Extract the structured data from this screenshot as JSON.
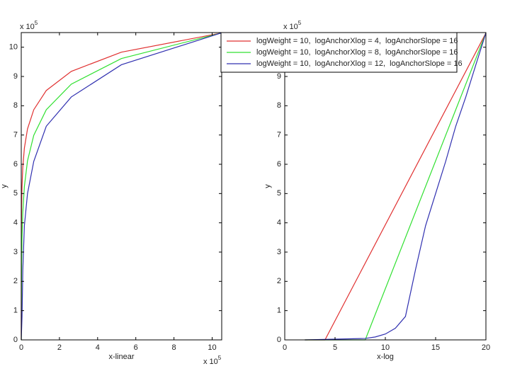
{
  "chart_data": [
    {
      "type": "line",
      "x_label": "x-linear",
      "y_label": "y",
      "x_scale_label": {
        "base": "x 10",
        "exponent": "5"
      },
      "y_scale_label": {
        "base": "x 10",
        "exponent": "5"
      },
      "xlim": [
        0,
        10.5
      ],
      "ylim": [
        0,
        10.5
      ],
      "xticks": [
        0,
        2,
        4,
        6,
        8,
        10
      ],
      "yticks": [
        0,
        1,
        2,
        3,
        4,
        5,
        6,
        7,
        8,
        9,
        10
      ],
      "series": [
        {
          "color": "#e03030",
          "x": [
            4e-05,
            0.00016,
            0.00032,
            0.00064,
            0.00128,
            0.00256,
            0.00512,
            0.01024,
            0.02048,
            0.04096,
            0.08192,
            0.16384,
            0.32768,
            0.65536,
            1.31072,
            2.62144,
            5.24288,
            10.48576
          ],
          "values": [
            0,
            0,
            0.655,
            1.311,
            1.966,
            2.621,
            3.277,
            3.932,
            4.588,
            5.243,
            5.898,
            6.554,
            7.209,
            7.864,
            8.52,
            9.175,
            9.83,
            10.486
          ]
        },
        {
          "color": "#30e030",
          "x": [
            4e-05,
            0.00256,
            0.00512,
            0.01024,
            0.02048,
            0.04096,
            0.08192,
            0.16384,
            0.32768,
            0.65536,
            1.31072,
            2.62144,
            5.24288,
            10.48576
          ],
          "values": [
            0,
            0,
            0.874,
            1.748,
            2.621,
            3.495,
            4.369,
            5.243,
            6.117,
            6.99,
            7.864,
            8.738,
            9.612,
            10.486
          ]
        },
        {
          "color": "#3030b0",
          "x": [
            4e-05,
            0.00256,
            0.00512,
            0.01024,
            0.02048,
            0.04096,
            0.08192,
            0.16384,
            0.32768,
            0.65536,
            1.31072,
            2.62144,
            5.24288,
            10.48576
          ],
          "values": [
            0,
            0.05,
            0.1,
            0.2,
            0.4,
            0.8,
            2.4,
            3.9,
            5.0,
            6.1,
            7.3,
            8.3,
            9.4,
            10.49
          ]
        }
      ]
    },
    {
      "type": "line",
      "x_label": "x-log",
      "y_label": "y",
      "y_scale_label": {
        "base": "x 10",
        "exponent": "5"
      },
      "xlim": [
        0,
        20
      ],
      "ylim": [
        0,
        10.5
      ],
      "xticks": [
        0,
        5,
        10,
        15,
        20
      ],
      "yticks": [
        0,
        1,
        2,
        3,
        4,
        5,
        6,
        7,
        8,
        9,
        10
      ],
      "legend": "upper-left",
      "series": [
        {
          "name": "logWeight = 10,  logAnchorXlog = 4,  logAnchorSlope = 16",
          "color": "#e03030",
          "x": [
            2,
            4,
            20
          ],
          "values": [
            0,
            0,
            10.486
          ]
        },
        {
          "name": "logWeight = 10,  logAnchorXlog = 8,  logAnchorSlope = 16",
          "color": "#30e030",
          "x": [
            2,
            8,
            20
          ],
          "values": [
            0,
            0,
            10.486
          ]
        },
        {
          "name": "logWeight = 10,  logAnchorXlog = 12,  logAnchorSlope = 16",
          "color": "#3030b0",
          "x": [
            2,
            8,
            9,
            10,
            11,
            12,
            13,
            14,
            15,
            16,
            17,
            18,
            19,
            20
          ],
          "values": [
            0,
            0.05,
            0.1,
            0.2,
            0.4,
            0.8,
            2.4,
            3.9,
            5.0,
            6.1,
            7.3,
            8.3,
            9.4,
            10.49
          ]
        }
      ]
    }
  ]
}
